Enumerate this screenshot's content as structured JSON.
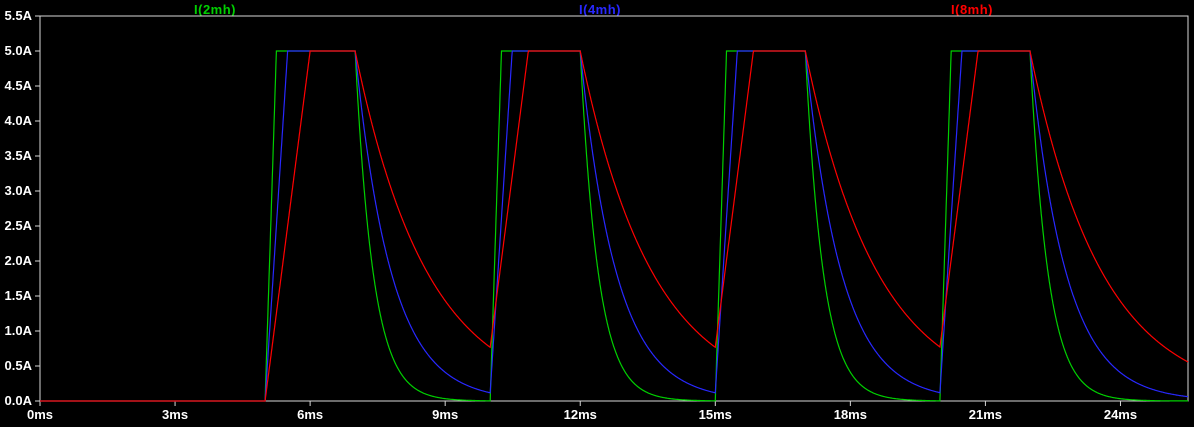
{
  "window": {
    "background": "#000000",
    "frame_color": "#d8d8d8",
    "text_color": "#ffffff"
  },
  "chart_data": {
    "type": "line",
    "title": "",
    "x_unit": "ms",
    "y_unit": "A",
    "xlim": [
      0,
      25.5
    ],
    "ylim": [
      0,
      5.5
    ],
    "grid": false,
    "legend_position": "top",
    "amplitude_A": 5.0,
    "pulse_on_ms": [
      [
        5,
        7
      ],
      [
        10,
        12
      ],
      [
        15,
        17
      ],
      [
        20,
        22
      ]
    ],
    "sim_step_ms": 0.01,
    "x_ticks": [
      {
        "value": 0,
        "label": "0ms"
      },
      {
        "value": 3,
        "label": "3ms"
      },
      {
        "value": 6,
        "label": "6ms"
      },
      {
        "value": 9,
        "label": "9ms"
      },
      {
        "value": 12,
        "label": "12ms"
      },
      {
        "value": 15,
        "label": "15ms"
      },
      {
        "value": 18,
        "label": "18ms"
      },
      {
        "value": 21,
        "label": "21ms"
      },
      {
        "value": 24,
        "label": "24ms"
      }
    ],
    "y_ticks": [
      {
        "value": 0.0,
        "label": "0.0A"
      },
      {
        "value": 0.5,
        "label": "0.5A"
      },
      {
        "value": 1.0,
        "label": "1.0A"
      },
      {
        "value": 1.5,
        "label": "1.5A"
      },
      {
        "value": 2.0,
        "label": "2.0A"
      },
      {
        "value": 2.5,
        "label": "2.5A"
      },
      {
        "value": 3.0,
        "label": "3.0A"
      },
      {
        "value": 3.5,
        "label": "3.5A"
      },
      {
        "value": 4.0,
        "label": "4.0A"
      },
      {
        "value": 4.5,
        "label": "4.5A"
      },
      {
        "value": 5.0,
        "label": "5.0A"
      },
      {
        "value": 5.5,
        "label": "5.5A"
      }
    ],
    "series": [
      {
        "name": "I(2mh)",
        "color": "#00d000",
        "inductance_mH": 2,
        "rise_A_per_ms": 20,
        "decay_tau_ms": 0.4
      },
      {
        "name": "I(4mh)",
        "color": "#2828ff",
        "inductance_mH": 4,
        "rise_A_per_ms": 10,
        "decay_tau_ms": 0.8
      },
      {
        "name": "I(8mh)",
        "color": "#ff0000",
        "inductance_mH": 8,
        "rise_A_per_ms": 5,
        "decay_tau_ms": 1.6
      }
    ]
  }
}
